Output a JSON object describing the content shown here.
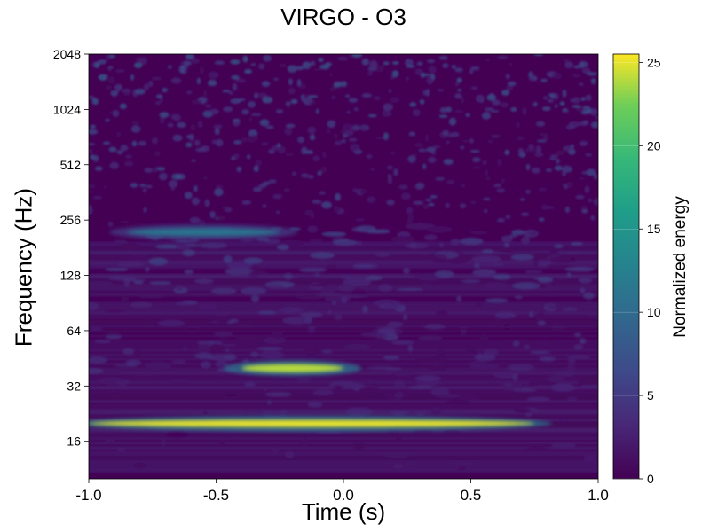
{
  "chart_data": {
    "type": "heatmap",
    "title": "VIRGO - O3",
    "xlabel": "Time (s)",
    "ylabel": "Frequency (Hz)",
    "colorbar_label": "Normalized energy",
    "xlim": [
      -1.0,
      1.0
    ],
    "ylim": [
      10,
      2048
    ],
    "yscale": "log2",
    "x_ticks": [
      -1.0,
      -0.5,
      0.0,
      0.5,
      1.0
    ],
    "x_tick_labels": [
      "-1.0",
      "-0.5",
      "0.0",
      "0.5",
      "1.0"
    ],
    "y_ticks": [
      16,
      32,
      64,
      128,
      256,
      512,
      1024,
      2048
    ],
    "y_tick_labels": [
      "16",
      "32",
      "64",
      "128",
      "256",
      "512",
      "1024",
      "2048"
    ],
    "colorbar_range": [
      0,
      25.5
    ],
    "colorbar_ticks": [
      0,
      5,
      10,
      15,
      20,
      25
    ],
    "colorbar_tick_labels": [
      "0",
      "5",
      "10",
      "15",
      "20",
      "25"
    ],
    "colormap": "viridis",
    "features": [
      {
        "t_start": -1.0,
        "t_end": 0.75,
        "freq": 20,
        "energy": 25
      },
      {
        "t_start": -0.4,
        "t_end": 0.0,
        "freq": 40,
        "energy": 24
      },
      {
        "t_start": -0.85,
        "t_end": -0.25,
        "freq": 220,
        "energy": 11
      }
    ]
  }
}
